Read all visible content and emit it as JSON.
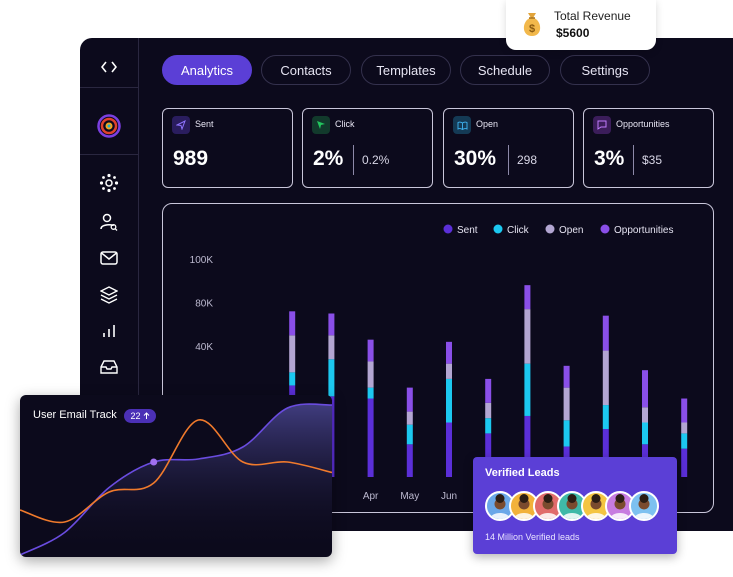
{
  "tabs": [
    {
      "label": "Analytics",
      "active": true
    },
    {
      "label": "Contacts",
      "active": false
    },
    {
      "label": "Templates",
      "active": false
    },
    {
      "label": "Schedule",
      "active": false
    },
    {
      "label": "Settings",
      "active": false
    }
  ],
  "stats": {
    "sent": {
      "label": "Sent",
      "value": "989"
    },
    "click": {
      "label": "Click",
      "value": "2%",
      "secondary": "0.2%"
    },
    "open": {
      "label": "Open",
      "value": "30%",
      "secondary": "298"
    },
    "opportunities": {
      "label": "Opportunities",
      "value": "3%",
      "secondary": "$35"
    }
  },
  "revenue": {
    "label": "Total Revenue",
    "value": "$5600"
  },
  "email_track": {
    "title": "User Email Track",
    "badge": "22"
  },
  "leads": {
    "title": "Verified Leads",
    "subtitle": "14 Million Verified leads"
  },
  "colors": {
    "sent": "#5b2fd8",
    "click": "#1cc8f0",
    "open": "#b3a6d2",
    "opportunities": "#8a4fe8",
    "accent": "#5b3fd6"
  },
  "chart_data": {
    "type": "bar",
    "stacked": true,
    "legend_position": "top-right",
    "yticks": [
      "100K",
      "80K",
      "40K"
    ],
    "categories": [
      "",
      "",
      "",
      "Apr",
      "May",
      "Jun",
      "",
      "",
      "",
      "",
      "",
      ""
    ],
    "series": [
      {
        "name": "Sent",
        "values": [
          12,
          42,
          37,
          36,
          15,
          25,
          20,
          28,
          14,
          22,
          15,
          13
        ]
      },
      {
        "name": "Click",
        "values": [
          7,
          6,
          17,
          5,
          9,
          20,
          7,
          24,
          12,
          11,
          10,
          7
        ]
      },
      {
        "name": "Open",
        "values": [
          7,
          17,
          11,
          12,
          6,
          7,
          7,
          25,
          15,
          25,
          7,
          5
        ]
      },
      {
        "name": "Opportunities",
        "values": [
          10,
          11,
          10,
          10,
          11,
          10,
          11,
          11,
          10,
          16,
          17,
          11
        ]
      }
    ],
    "ylim": [
      0,
      100
    ]
  },
  "email_chart": {
    "type": "line",
    "series": [
      {
        "values": [
          0,
          15,
          45,
          62,
          64,
          72,
          98,
          100
        ]
      },
      {
        "values": [
          30,
          22,
          42,
          48,
          90,
          62,
          62,
          55
        ]
      }
    ]
  }
}
